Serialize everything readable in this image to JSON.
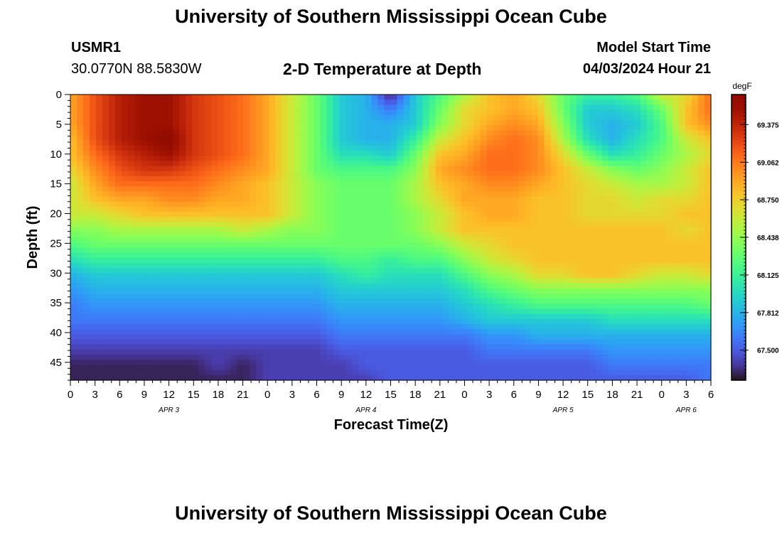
{
  "header": {
    "title": "University of Southern Mississippi Ocean Cube",
    "station_id": "USMR1",
    "coordinates": "30.0770N  88.5830W",
    "subtitle": "2-D Temperature at Depth",
    "model_start_label": "Model Start Time",
    "model_start_value": "04/03/2024 Hour 21"
  },
  "footer": {
    "title": "University of Southern Mississippi Ocean Cube"
  },
  "chart_data": {
    "type": "heatmap",
    "xlabel": "Forecast Time(Z)",
    "ylabel": "Depth (ft)",
    "units_label": "degF",
    "x_hours": [
      0,
      3,
      6,
      9,
      12,
      15,
      18,
      21,
      24,
      27,
      30,
      33,
      36,
      39,
      42,
      45,
      48,
      51,
      54,
      57,
      60,
      63,
      66,
      69,
      72,
      75,
      78
    ],
    "x_tick_labels": [
      "0",
      "3",
      "6",
      "9",
      "12",
      "15",
      "18",
      "21",
      "0",
      "3",
      "6",
      "9",
      "12",
      "15",
      "18",
      "21",
      "0",
      "3",
      "6",
      "9",
      "12",
      "15",
      "18",
      "21",
      "0",
      "3",
      "6"
    ],
    "date_labels": [
      {
        "label": "APR 3",
        "hour": 12
      },
      {
        "label": "APR 4",
        "hour": 36
      },
      {
        "label": "APR 5",
        "hour": 60
      },
      {
        "label": "APR 6",
        "hour": 75
      }
    ],
    "y_depths": [
      0,
      5,
      10,
      15,
      20,
      25,
      30,
      35,
      40,
      45
    ],
    "y_tick_labels": [
      "0",
      "5",
      "10",
      "15",
      "20",
      "25",
      "30",
      "35",
      "40",
      "45"
    ],
    "ylim": [
      0,
      48
    ],
    "xlim": [
      0,
      78
    ],
    "y_inverted": true,
    "z_min": 67.25,
    "z_max": 69.625,
    "colorbar_ticks": [
      "69.375",
      "69.062",
      "68.750",
      "68.438",
      "68.125",
      "67.812",
      "67.500"
    ],
    "colorbar_tick_values": [
      69.375,
      69.062,
      68.75,
      68.438,
      68.125,
      67.812,
      67.5
    ],
    "colormap": "turbo",
    "values_degF": [
      [
        68.9,
        69.2,
        69.4,
        69.5,
        69.5,
        69.3,
        69.2,
        69.1,
        68.9,
        68.6,
        68.3,
        67.9,
        67.8,
        67.3,
        67.9,
        68.2,
        68.5,
        68.8,
        68.9,
        68.7,
        68.3,
        68.1,
        68.1,
        68.2,
        68.6,
        68.7,
        69.1
      ],
      [
        68.9,
        69.2,
        69.4,
        69.5,
        69.5,
        69.3,
        69.2,
        69.1,
        68.9,
        68.6,
        68.3,
        67.9,
        67.8,
        67.6,
        67.9,
        68.3,
        68.7,
        68.8,
        68.9,
        68.8,
        68.3,
        67.9,
        67.9,
        68.0,
        68.3,
        68.8,
        69.1
      ],
      [
        68.9,
        69.2,
        69.4,
        69.5,
        69.5,
        69.3,
        69.2,
        69.1,
        68.9,
        68.6,
        68.3,
        67.9,
        67.8,
        67.8,
        67.9,
        68.4,
        68.7,
        68.9,
        69.0,
        68.9,
        68.4,
        67.9,
        67.8,
        67.9,
        68.2,
        68.8,
        69.0
      ],
      [
        68.8,
        69.2,
        69.4,
        69.5,
        69.6,
        69.3,
        69.2,
        69.1,
        68.9,
        68.6,
        68.3,
        67.9,
        67.8,
        67.8,
        68.1,
        68.6,
        68.8,
        69.0,
        69.1,
        69.0,
        68.5,
        68.0,
        67.8,
        68.0,
        68.2,
        68.6,
        68.8
      ],
      [
        68.8,
        69.1,
        69.3,
        69.4,
        69.5,
        69.3,
        69.2,
        69.1,
        68.9,
        68.6,
        68.3,
        68.0,
        68.0,
        67.9,
        68.3,
        68.8,
        68.9,
        69.1,
        69.1,
        69.0,
        68.7,
        68.3,
        68.0,
        68.1,
        68.3,
        68.5,
        68.7
      ],
      [
        68.7,
        69.0,
        69.2,
        69.3,
        69.3,
        69.2,
        69.1,
        69.0,
        68.9,
        68.6,
        68.3,
        68.2,
        68.2,
        68.2,
        68.4,
        68.9,
        69.0,
        69.1,
        69.1,
        69.0,
        68.8,
        68.6,
        68.4,
        68.3,
        68.4,
        68.6,
        68.8
      ],
      [
        68.6,
        68.9,
        69.1,
        69.1,
        69.1,
        69.1,
        69.0,
        68.9,
        68.8,
        68.6,
        68.4,
        68.3,
        68.3,
        68.3,
        68.5,
        68.8,
        68.9,
        69.0,
        69.0,
        68.9,
        68.8,
        68.7,
        68.6,
        68.5,
        68.5,
        68.6,
        68.8
      ],
      [
        68.6,
        68.8,
        68.9,
        68.9,
        69.0,
        69.0,
        68.9,
        68.9,
        68.8,
        68.6,
        68.4,
        68.3,
        68.3,
        68.3,
        68.5,
        68.7,
        68.9,
        68.9,
        68.9,
        68.8,
        68.8,
        68.7,
        68.7,
        68.6,
        68.7,
        68.7,
        68.8
      ],
      [
        68.6,
        68.6,
        68.7,
        68.8,
        68.8,
        68.8,
        68.8,
        68.8,
        68.8,
        68.6,
        68.4,
        68.3,
        68.3,
        68.3,
        68.4,
        68.6,
        68.8,
        68.9,
        68.9,
        68.8,
        68.8,
        68.7,
        68.7,
        68.7,
        68.7,
        68.8,
        68.8
      ],
      [
        68.4,
        68.4,
        68.5,
        68.5,
        68.5,
        68.5,
        68.5,
        68.6,
        68.5,
        68.4,
        68.4,
        68.3,
        68.3,
        68.3,
        68.4,
        68.6,
        68.8,
        68.8,
        68.8,
        68.8,
        68.8,
        68.8,
        68.8,
        68.8,
        68.8,
        68.7,
        68.8
      ],
      [
        68.2,
        68.3,
        68.3,
        68.3,
        68.3,
        68.3,
        68.3,
        68.3,
        68.3,
        68.3,
        68.3,
        68.3,
        68.3,
        68.3,
        68.3,
        68.4,
        68.6,
        68.7,
        68.8,
        68.8,
        68.8,
        68.8,
        68.8,
        68.8,
        68.8,
        68.8,
        68.8
      ],
      [
        68.0,
        68.1,
        68.1,
        68.1,
        68.1,
        68.1,
        68.1,
        68.1,
        68.1,
        68.1,
        68.1,
        68.2,
        68.2,
        68.1,
        68.2,
        68.2,
        68.4,
        68.6,
        68.7,
        68.8,
        68.8,
        68.8,
        68.8,
        68.8,
        68.8,
        68.8,
        68.8
      ],
      [
        67.8,
        67.9,
        67.9,
        67.9,
        67.9,
        67.9,
        67.9,
        67.9,
        67.9,
        67.9,
        67.9,
        68.0,
        68.1,
        68.0,
        68.0,
        68.0,
        68.2,
        68.4,
        68.5,
        68.7,
        68.7,
        68.8,
        68.8,
        68.7,
        68.6,
        68.6,
        68.7
      ],
      [
        67.7,
        67.8,
        67.8,
        67.8,
        67.8,
        67.8,
        67.8,
        67.8,
        67.8,
        67.8,
        67.8,
        67.9,
        67.9,
        67.9,
        67.9,
        67.9,
        68.0,
        68.2,
        68.3,
        68.4,
        68.4,
        68.4,
        68.4,
        68.4,
        68.4,
        68.4,
        68.4
      ],
      [
        67.6,
        67.7,
        67.7,
        67.7,
        67.7,
        67.7,
        67.7,
        67.7,
        67.7,
        67.7,
        67.7,
        67.8,
        67.8,
        67.8,
        67.8,
        67.8,
        67.9,
        68.0,
        68.1,
        68.2,
        68.2,
        68.2,
        68.2,
        68.2,
        68.2,
        68.2,
        68.3
      ],
      [
        67.6,
        67.6,
        67.6,
        67.6,
        67.6,
        67.6,
        67.6,
        67.6,
        67.6,
        67.6,
        67.6,
        67.7,
        67.7,
        67.7,
        67.7,
        67.7,
        67.8,
        67.9,
        67.9,
        67.9,
        67.9,
        67.9,
        68.0,
        68.0,
        68.0,
        68.0,
        68.0
      ],
      [
        67.5,
        67.5,
        67.5,
        67.5,
        67.5,
        67.5,
        67.5,
        67.5,
        67.5,
        67.5,
        67.5,
        67.6,
        67.6,
        67.6,
        67.6,
        67.6,
        67.6,
        67.7,
        67.7,
        67.8,
        67.8,
        67.8,
        67.8,
        67.8,
        67.8,
        67.8,
        67.8
      ],
      [
        67.4,
        67.4,
        67.4,
        67.4,
        67.4,
        67.4,
        67.4,
        67.4,
        67.4,
        67.4,
        67.4,
        67.5,
        67.5,
        67.5,
        67.5,
        67.5,
        67.5,
        67.6,
        67.6,
        67.6,
        67.6,
        67.6,
        67.7,
        67.7,
        67.7,
        67.7,
        67.7
      ],
      [
        67.3,
        67.3,
        67.3,
        67.3,
        67.3,
        67.3,
        67.4,
        67.3,
        67.4,
        67.4,
        67.4,
        67.4,
        67.5,
        67.5,
        67.5,
        67.5,
        67.5,
        67.5,
        67.5,
        67.5,
        67.5,
        67.5,
        67.6,
        67.6,
        67.6,
        67.6,
        67.6
      ],
      [
        67.3,
        67.3,
        67.3,
        67.3,
        67.3,
        67.3,
        67.3,
        67.3,
        67.4,
        67.4,
        67.4,
        67.4,
        67.4,
        67.5,
        67.5,
        67.5,
        67.5,
        67.5,
        67.5,
        67.5,
        67.5,
        67.5,
        67.5,
        67.5,
        67.5,
        67.5,
        67.6
      ]
    ]
  }
}
